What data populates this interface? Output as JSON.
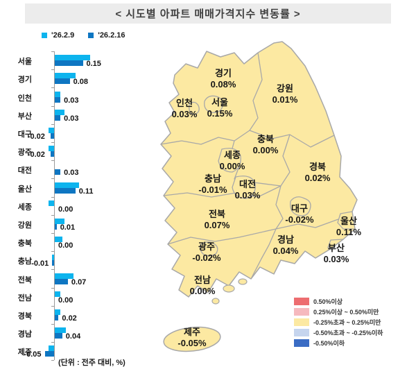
{
  "title": "< 시도별 아파트 매매가격지수 변동률 >",
  "chart_data": {
    "type": "bar",
    "orientation": "horizontal",
    "unit_note": "(단위 : 전주 대비, %)",
    "categories": [
      "서울",
      "경기",
      "인천",
      "부산",
      "대구",
      "광주",
      "대전",
      "울산",
      "세종",
      "강원",
      "충북",
      "충남",
      "전북",
      "전남",
      "경북",
      "경남",
      "제주"
    ],
    "series": [
      {
        "name": "'26.2.9",
        "color": "#0db4ee",
        "values": [
          0.19,
          0.11,
          0.03,
          0.05,
          -0.03,
          -0.03,
          0.0,
          0.13,
          -0.03,
          0.05,
          0.04,
          -0.01,
          0.1,
          0.03,
          0.03,
          0.06,
          -0.03
        ]
      },
      {
        "name": "'26.2.16",
        "color": "#0e76c2",
        "values": [
          0.15,
          0.08,
          0.03,
          0.03,
          -0.02,
          -0.02,
          0.03,
          0.11,
          0.0,
          0.01,
          0.0,
          -0.01,
          0.07,
          0.0,
          0.02,
          0.04,
          -0.05
        ]
      }
    ],
    "value_labels": [
      "0.15",
      "0.08",
      "0.03",
      "0.03",
      "-0.02",
      "-0.02",
      "0.03",
      "0.11",
      "0.00",
      "0.01",
      "0.00",
      "-0.01",
      "0.07",
      "0.00",
      "0.02",
      "0.04",
      "-0.05"
    ],
    "xlim": [
      -0.08,
      0.22
    ],
    "axis_color": "#9a9a9a"
  },
  "map": {
    "fill": "#fce9a2",
    "border": "#a8a8a8",
    "regions": [
      {
        "id": "gyeonggi",
        "name": "경기",
        "value": "0.08%"
      },
      {
        "id": "gangwon",
        "name": "강원",
        "value": "0.01%"
      },
      {
        "id": "incheon",
        "name": "인천",
        "value": "0.03%"
      },
      {
        "id": "seoul",
        "name": "서울",
        "value": "0.15%"
      },
      {
        "id": "chungbuk",
        "name": "충북",
        "value": "0.00%"
      },
      {
        "id": "sejong",
        "name": "세종",
        "value": "0.00%"
      },
      {
        "id": "gyeongbuk",
        "name": "경북",
        "value": "0.02%"
      },
      {
        "id": "chungnam",
        "name": "충남",
        "value": "-0.01%"
      },
      {
        "id": "daejeon",
        "name": "대전",
        "value": "0.03%"
      },
      {
        "id": "daegu",
        "name": "대구",
        "value": "-0.02%"
      },
      {
        "id": "jeonbuk",
        "name": "전북",
        "value": "0.07%"
      },
      {
        "id": "ulsan",
        "name": "울산",
        "value": "0.11%"
      },
      {
        "id": "gyeongnam",
        "name": "경남",
        "value": "0.04%"
      },
      {
        "id": "gwangju",
        "name": "광주",
        "value": "-0.02%"
      },
      {
        "id": "busan",
        "name": "부산",
        "value": "0.03%"
      },
      {
        "id": "jeonnam",
        "name": "전남",
        "value": "0.00%"
      },
      {
        "id": "jeju",
        "name": "제주",
        "value": "-0.05%"
      }
    ]
  },
  "map_legend": {
    "items": [
      {
        "label": "0.50%이상",
        "color": "#ed6d70"
      },
      {
        "label": "0.25%이상 ~ 0.50%미만",
        "color": "#f6b9be"
      },
      {
        "label": "-0.25%초과 ~ 0.25%미만",
        "color": "#fce9a2"
      },
      {
        "label": "-0.50%초과 ~ -0.25%이하",
        "color": "#c6d5ee"
      },
      {
        "label": "-0.50%이하",
        "color": "#3a6cc4"
      }
    ]
  }
}
